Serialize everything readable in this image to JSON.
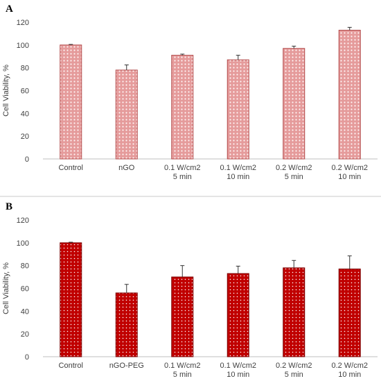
{
  "chart_data": [
    {
      "type": "bar",
      "panel_label": "A",
      "categories": [
        [
          "Control"
        ],
        [
          "nGO"
        ],
        [
          "0.1 W/cm2",
          "5 min"
        ],
        [
          "0.1 W/cm2",
          "10 min"
        ],
        [
          "0.2 W/cm2",
          "5 min"
        ],
        [
          "0.2 W/cm2",
          "10 min"
        ]
      ],
      "values": [
        100,
        78,
        91,
        87,
        97,
        113
      ],
      "errors": [
        0.5,
        4.5,
        1,
        4,
        2,
        2.5
      ],
      "ylabel": "Cell Viability, %",
      "ylim": [
        0,
        120
      ],
      "yticks": [
        0,
        20,
        40,
        60,
        80,
        100,
        120
      ],
      "bar_color": "#e8a0a0",
      "pattern": "dense-dots",
      "grid": false
    },
    {
      "type": "bar",
      "panel_label": "B",
      "categories": [
        [
          "Control"
        ],
        [
          "nGO-PEG"
        ],
        [
          "0.1 W/cm2",
          "5 min"
        ],
        [
          "0.1 W/cm2",
          "10 min"
        ],
        [
          "0.2 W/cm2",
          "5 min"
        ],
        [
          "0.2 W/cm2",
          "10 min"
        ]
      ],
      "values": [
        100,
        56,
        70,
        73,
        78,
        77
      ],
      "errors": [
        0.5,
        7.5,
        10,
        6.5,
        6.5,
        11.5
      ],
      "ylabel": "Cell Viability, %",
      "ylim": [
        0,
        120
      ],
      "yticks": [
        0,
        20,
        40,
        60,
        80,
        100,
        120
      ],
      "bar_color": "#c00000",
      "pattern": "white-dots",
      "grid": false
    }
  ]
}
